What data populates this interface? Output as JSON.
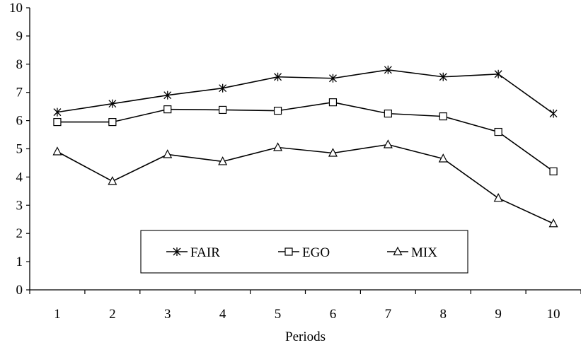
{
  "chart_data": {
    "type": "line",
    "title": "",
    "xlabel": "Periods",
    "ylabel": "",
    "categories": [
      "1",
      "2",
      "3",
      "4",
      "5",
      "6",
      "7",
      "8",
      "9",
      "10"
    ],
    "ylim": [
      0,
      10
    ],
    "yticks": [
      "0",
      "1",
      "2",
      "3",
      "4",
      "5",
      "6",
      "7",
      "8",
      "9",
      "10"
    ],
    "grid": false,
    "legend_position": "bottom-center (inside plot)",
    "series": [
      {
        "name": "FAIR",
        "marker": "asterisk",
        "color": "#000000",
        "values": [
          6.3,
          6.6,
          6.9,
          7.15,
          7.55,
          7.5,
          7.8,
          7.55,
          7.65,
          6.25
        ]
      },
      {
        "name": "EGO",
        "marker": "square",
        "color": "#000000",
        "values": [
          5.95,
          5.95,
          6.4,
          6.38,
          6.35,
          6.65,
          6.25,
          6.15,
          5.6,
          4.2
        ]
      },
      {
        "name": "MIX",
        "marker": "triangle",
        "color": "#000000",
        "values": [
          4.9,
          3.85,
          4.8,
          4.55,
          5.05,
          4.85,
          5.15,
          4.65,
          3.25,
          2.35
        ]
      }
    ]
  }
}
